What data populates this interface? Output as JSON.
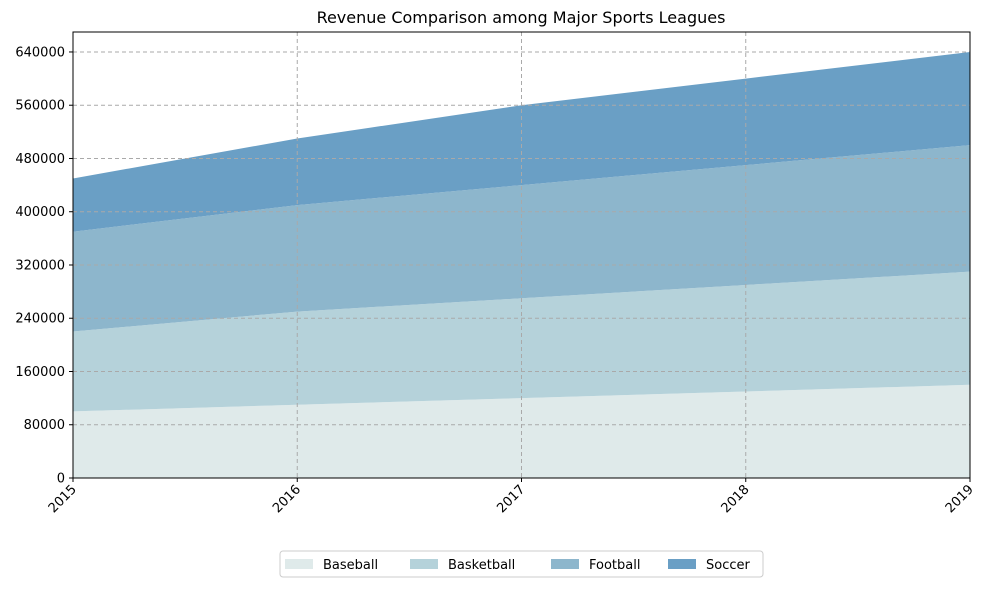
{
  "chart_data": {
    "type": "area",
    "stacked": true,
    "title": "Revenue Comparison among Major Sports Leagues",
    "xlabel": "",
    "ylabel": "",
    "x": [
      "2015",
      "2016",
      "2017",
      "2018",
      "2019"
    ],
    "series": [
      {
        "name": "Baseball",
        "values": [
          100000,
          110000,
          120000,
          130000,
          140000
        ],
        "color": "#dfeaea"
      },
      {
        "name": "Basketball",
        "values": [
          120000,
          140000,
          150000,
          160000,
          170000
        ],
        "color": "#b5d2da"
      },
      {
        "name": "Football",
        "values": [
          150000,
          160000,
          170000,
          180000,
          190000
        ],
        "color": "#8db6cc"
      },
      {
        "name": "Soccer",
        "values": [
          80000,
          100000,
          120000,
          130000,
          140000
        ],
        "color": "#6a9fc5"
      }
    ],
    "ylim": [
      0,
      670000
    ],
    "yticks": [
      "0",
      "80000",
      "160000",
      "240000",
      "320000",
      "400000",
      "480000",
      "560000",
      "640000"
    ],
    "grid": true,
    "legend_position": "bottom-center"
  }
}
